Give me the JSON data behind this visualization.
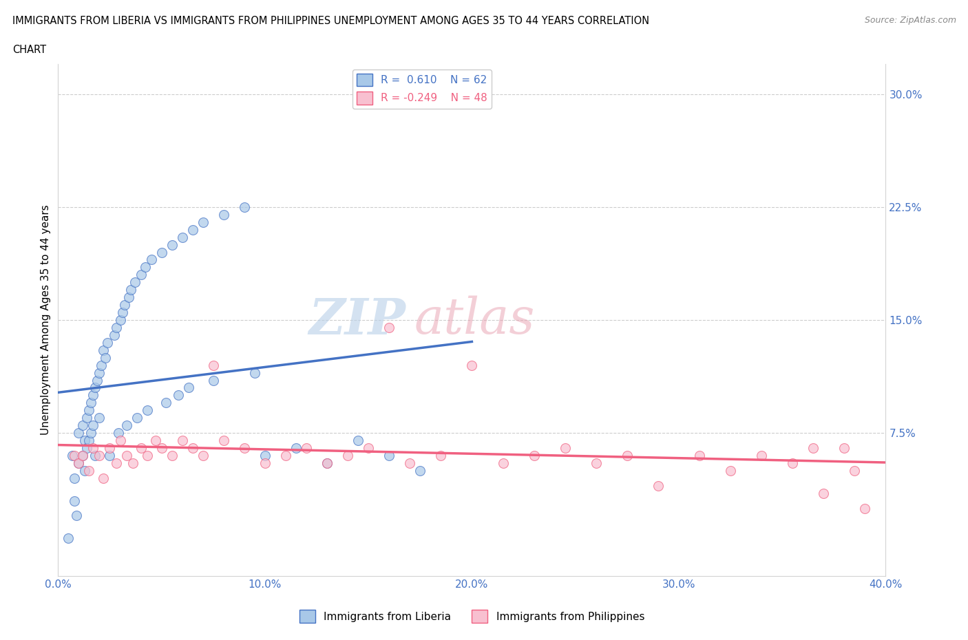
{
  "title_line1": "IMMIGRANTS FROM LIBERIA VS IMMIGRANTS FROM PHILIPPINES UNEMPLOYMENT AMONG AGES 35 TO 44 YEARS CORRELATION",
  "title_line2": "CHART",
  "source": "Source: ZipAtlas.com",
  "ylabel": "Unemployment Among Ages 35 to 44 years",
  "xlim": [
    0.0,
    0.4
  ],
  "ylim": [
    -0.02,
    0.32
  ],
  "xticks": [
    0.0,
    0.1,
    0.2,
    0.3,
    0.4
  ],
  "xtick_labels": [
    "0.0%",
    "10.0%",
    "20.0%",
    "30.0%",
    "40.0%"
  ],
  "yticks": [
    0.075,
    0.15,
    0.225,
    0.3
  ],
  "ytick_labels": [
    "7.5%",
    "15.0%",
    "22.5%",
    "30.0%"
  ],
  "R_liberia": 0.61,
  "N_liberia": 62,
  "R_philippines": -0.249,
  "N_philippines": 48,
  "liberia_color": "#a8c8e8",
  "philippines_color": "#f8c0d0",
  "liberia_line_color": "#4472c4",
  "philippines_line_color": "#f06080",
  "scatter_alpha": 0.7,
  "marker_size": 100,
  "liberia_x": [
    0.005,
    0.007,
    0.008,
    0.008,
    0.009,
    0.01,
    0.01,
    0.012,
    0.012,
    0.013,
    0.013,
    0.014,
    0.014,
    0.015,
    0.015,
    0.016,
    0.016,
    0.017,
    0.017,
    0.018,
    0.018,
    0.019,
    0.02,
    0.02,
    0.021,
    0.022,
    0.023,
    0.024,
    0.025,
    0.027,
    0.028,
    0.029,
    0.03,
    0.031,
    0.032,
    0.033,
    0.034,
    0.035,
    0.037,
    0.038,
    0.04,
    0.042,
    0.043,
    0.045,
    0.05,
    0.052,
    0.055,
    0.058,
    0.06,
    0.063,
    0.065,
    0.07,
    0.075,
    0.08,
    0.09,
    0.095,
    0.1,
    0.115,
    0.13,
    0.145,
    0.16,
    0.175
  ],
  "liberia_y": [
    0.005,
    0.06,
    0.045,
    0.03,
    0.02,
    0.075,
    0.055,
    0.08,
    0.06,
    0.07,
    0.05,
    0.085,
    0.065,
    0.09,
    0.07,
    0.095,
    0.075,
    0.1,
    0.08,
    0.105,
    0.06,
    0.11,
    0.115,
    0.085,
    0.12,
    0.13,
    0.125,
    0.135,
    0.06,
    0.14,
    0.145,
    0.075,
    0.15,
    0.155,
    0.16,
    0.08,
    0.165,
    0.17,
    0.175,
    0.085,
    0.18,
    0.185,
    0.09,
    0.19,
    0.195,
    0.095,
    0.2,
    0.1,
    0.205,
    0.105,
    0.21,
    0.215,
    0.11,
    0.22,
    0.225,
    0.115,
    0.06,
    0.065,
    0.055,
    0.07,
    0.06,
    0.05
  ],
  "philippines_x": [
    0.008,
    0.01,
    0.012,
    0.015,
    0.017,
    0.02,
    0.022,
    0.025,
    0.028,
    0.03,
    0.033,
    0.036,
    0.04,
    0.043,
    0.047,
    0.05,
    0.055,
    0.06,
    0.065,
    0.07,
    0.075,
    0.08,
    0.09,
    0.1,
    0.11,
    0.12,
    0.13,
    0.14,
    0.15,
    0.16,
    0.17,
    0.185,
    0.2,
    0.215,
    0.23,
    0.245,
    0.26,
    0.275,
    0.29,
    0.31,
    0.325,
    0.34,
    0.355,
    0.365,
    0.37,
    0.38,
    0.385,
    0.39
  ],
  "philippines_y": [
    0.06,
    0.055,
    0.06,
    0.05,
    0.065,
    0.06,
    0.045,
    0.065,
    0.055,
    0.07,
    0.06,
    0.055,
    0.065,
    0.06,
    0.07,
    0.065,
    0.06,
    0.07,
    0.065,
    0.06,
    0.12,
    0.07,
    0.065,
    0.055,
    0.06,
    0.065,
    0.055,
    0.06,
    0.065,
    0.145,
    0.055,
    0.06,
    0.12,
    0.055,
    0.06,
    0.065,
    0.055,
    0.06,
    0.04,
    0.06,
    0.05,
    0.06,
    0.055,
    0.065,
    0.035,
    0.065,
    0.05,
    0.025
  ]
}
